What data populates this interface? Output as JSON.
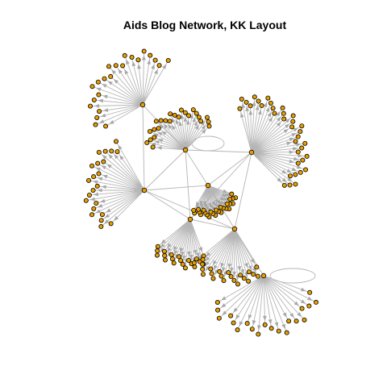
{
  "figure": {
    "title": "Aids Blog Network, KK Layout"
  },
  "colors": {
    "node_fill": "#e69f00",
    "node_stroke": "#000000",
    "edge": "#b5b5b5",
    "background": "#ffffff"
  },
  "network": {
    "type": "directed graph",
    "layout": "Kamada-Kawai",
    "hubs": 8,
    "spoke_counts": [
      22,
      24,
      34,
      22,
      20,
      22,
      26,
      20
    ]
  }
}
